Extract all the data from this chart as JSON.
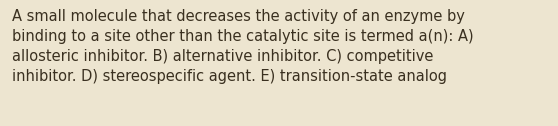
{
  "line1": "A small molecule that decreases the activity of an enzyme by",
  "line2": "binding to a site other than the catalytic site is termed a(n): A)",
  "line3": "allosteric inhibitor. B) alternative inhibitor. C) competitive",
  "line4": "inhibitor. D) stereospecific agent. E) transition-state analog",
  "background_color": "#ede5d0",
  "text_color": "#3a3020",
  "font_size": 10.5,
  "fig_width": 5.58,
  "fig_height": 1.26
}
